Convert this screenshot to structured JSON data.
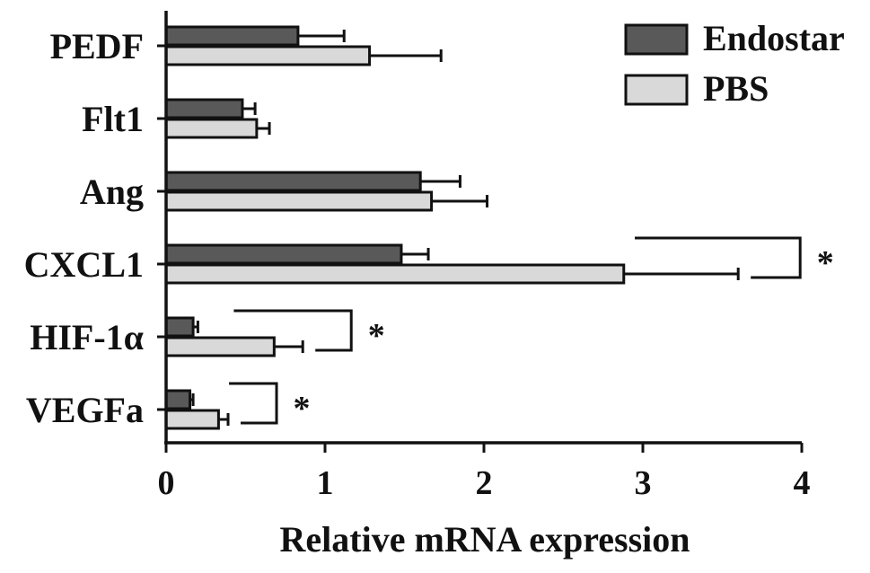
{
  "chart_data": {
    "type": "bar",
    "orientation": "horizontal",
    "title": "",
    "xlabel": "Relative mRNA expression",
    "ylabel": "",
    "xlim": [
      0,
      4
    ],
    "xticks": [
      "0",
      "1",
      "2",
      "3",
      "4"
    ],
    "categories": [
      "PEDF",
      "Flt1",
      "Ang",
      "CXCL1",
      "HIF-1α",
      "VEGFa"
    ],
    "series": [
      {
        "name": "Endostar",
        "color": "#595959",
        "values": [
          0.83,
          0.48,
          1.6,
          1.48,
          0.17,
          0.15
        ],
        "errors": [
          0.29,
          0.08,
          0.25,
          0.17,
          0.03,
          0.02
        ]
      },
      {
        "name": "PBS",
        "color": "#d9d9d9",
        "values": [
          1.28,
          0.57,
          1.67,
          2.88,
          0.68,
          0.33
        ],
        "errors": [
          0.45,
          0.08,
          0.35,
          0.72,
          0.18,
          0.06
        ]
      }
    ],
    "legend": {
      "position": "top-right"
    },
    "grid": false,
    "significance": [
      {
        "category": "CXCL1",
        "label": "*"
      },
      {
        "category": "HIF-1α",
        "label": "*"
      },
      {
        "category": "VEGFa",
        "label": "*"
      }
    ]
  }
}
